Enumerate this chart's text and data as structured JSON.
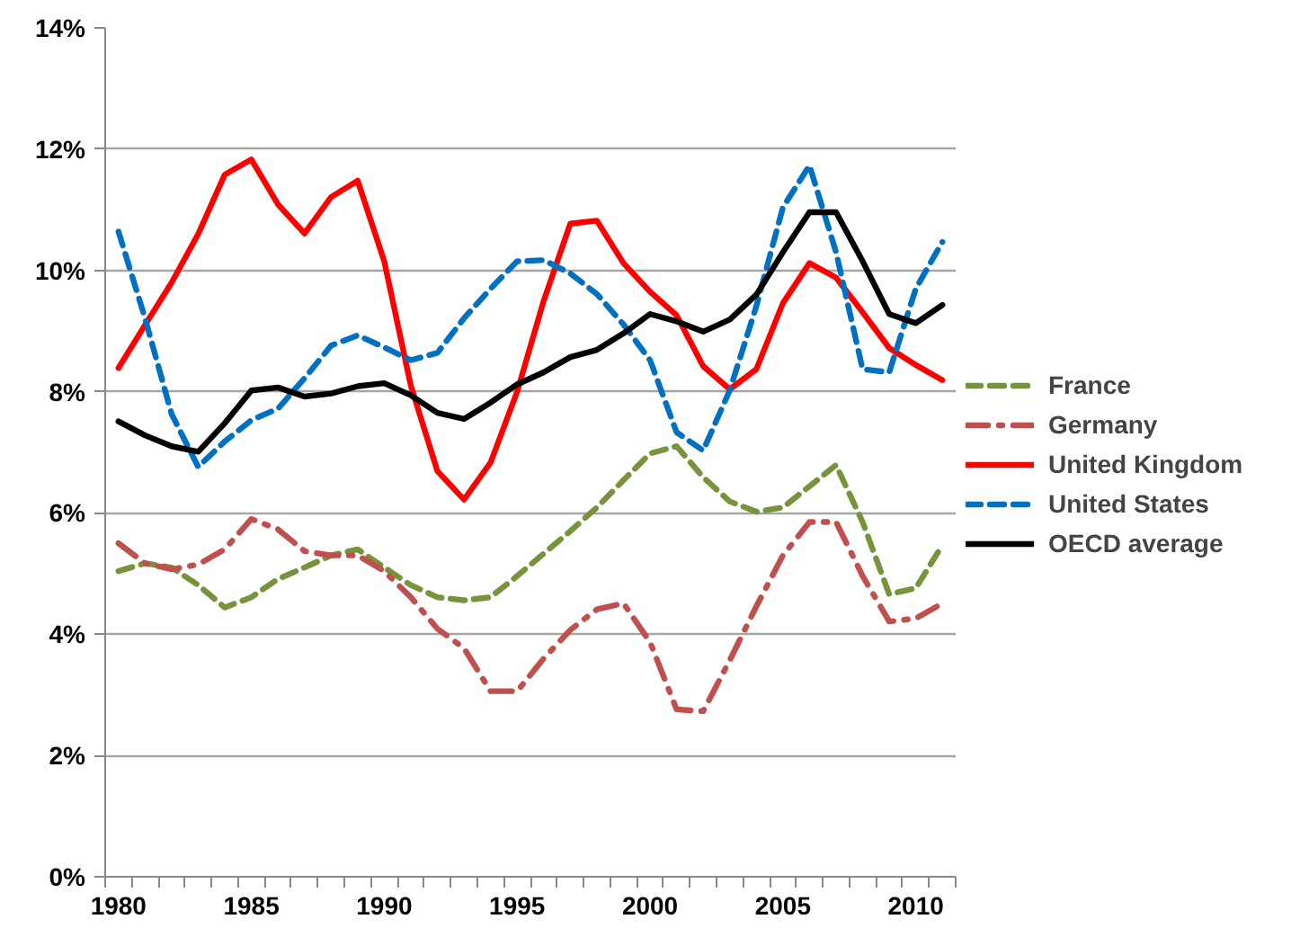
{
  "chart_data": {
    "type": "line",
    "x": [
      1980,
      1981,
      1982,
      1983,
      1984,
      1985,
      1986,
      1987,
      1988,
      1989,
      1990,
      1991,
      1992,
      1993,
      1994,
      1995,
      1996,
      1997,
      1998,
      1999,
      2000,
      2001,
      2002,
      2003,
      2004,
      2005,
      2006,
      2007,
      2008,
      2009,
      2010,
      2011
    ],
    "series": [
      {
        "name": "France",
        "color": "#77933c",
        "line_style": "dashed",
        "values": [
          5.04,
          5.17,
          5.1,
          4.81,
          4.44,
          4.61,
          4.91,
          5.1,
          5.3,
          5.4,
          5.1,
          4.81,
          4.61,
          4.56,
          4.61,
          4.96,
          5.33,
          5.7,
          6.09,
          6.54,
          6.98,
          7.1,
          6.59,
          6.19,
          6.02,
          6.09,
          6.44,
          6.79,
          5.85,
          4.66,
          4.76,
          5.47
        ]
      },
      {
        "name": "Germany",
        "color": "#c0504d",
        "line_style": "dashdot",
        "values": [
          5.5,
          5.17,
          5.07,
          5.15,
          5.4,
          5.9,
          5.73,
          5.37,
          5.3,
          5.3,
          5.04,
          4.61,
          4.09,
          3.77,
          3.06,
          3.06,
          3.6,
          4.07,
          4.41,
          4.51,
          3.87,
          2.76,
          2.73,
          3.57,
          4.46,
          5.3,
          5.85,
          5.85,
          4.96,
          4.21,
          4.26,
          4.51
        ]
      },
      {
        "name": "United Kingdom",
        "color": "#ff0000",
        "line_style": "solid",
        "values": [
          8.39,
          9.1,
          9.8,
          10.6,
          11.58,
          11.83,
          11.09,
          10.61,
          11.21,
          11.48,
          10.15,
          8.1,
          6.69,
          6.22,
          6.83,
          8.0,
          9.5,
          10.77,
          10.82,
          10.12,
          9.65,
          9.26,
          8.42,
          8.04,
          8.37,
          9.46,
          10.12,
          9.88,
          9.31,
          8.72,
          8.44,
          8.19
        ]
      },
      {
        "name": "United States",
        "color": "#0070c0",
        "line_style": "dashed",
        "values": [
          10.64,
          9.21,
          7.63,
          6.76,
          7.18,
          7.53,
          7.72,
          8.22,
          8.76,
          8.93,
          8.73,
          8.52,
          8.64,
          9.21,
          9.7,
          10.15,
          10.17,
          9.95,
          9.61,
          9.11,
          8.52,
          7.33,
          7.03,
          8.02,
          9.41,
          11.04,
          11.73,
          10.3,
          8.37,
          8.32,
          9.7,
          10.47
        ]
      },
      {
        "name": "OECD average",
        "color": "#000000",
        "line_style": "solid",
        "values": [
          7.51,
          7.28,
          7.1,
          7.01,
          7.48,
          8.02,
          8.07,
          7.92,
          7.97,
          8.09,
          8.14,
          7.94,
          7.65,
          7.55,
          7.82,
          8.12,
          8.32,
          8.57,
          8.69,
          8.96,
          9.28,
          9.16,
          8.99,
          9.19,
          9.6,
          10.3,
          10.96,
          10.96,
          10.15,
          9.28,
          9.13,
          9.43
        ]
      }
    ],
    "xlim": [
      1979.5,
      2011.5
    ],
    "xticks": [
      1980,
      1985,
      1990,
      1995,
      2000,
      2005,
      2010,
      {
        "value": 1979.5,
        "label": null
      },
      {
        "value": 1980.5,
        "label": null
      },
      {
        "value": 1981.5,
        "label": null
      },
      {
        "value": 1982.5,
        "label": null
      },
      {
        "value": 1983.5,
        "label": null
      },
      {
        "value": 1984.5,
        "label": null
      },
      {
        "value": 1985.5,
        "label": null
      },
      {
        "value": 1986.5,
        "label": null
      },
      {
        "value": 1987.5,
        "label": null
      },
      {
        "value": 1988.5,
        "label": null
      },
      {
        "value": 1989.5,
        "label": null
      },
      {
        "value": 1990.5,
        "label": null
      },
      {
        "value": 1991.5,
        "label": null
      },
      {
        "value": 1992.5,
        "label": null
      },
      {
        "value": 1993.5,
        "label": null
      },
      {
        "value": 1994.5,
        "label": null
      },
      {
        "value": 1995.5,
        "label": null
      },
      {
        "value": 1996.5,
        "label": null
      },
      {
        "value": 1997.5,
        "label": null
      },
      {
        "value": 1998.5,
        "label": null
      },
      {
        "value": 1999.5,
        "label": null
      },
      {
        "value": 2000.5,
        "label": null
      },
      {
        "value": 2001.5,
        "label": null
      },
      {
        "value": 2002.5,
        "label": null
      },
      {
        "value": 2003.5,
        "label": null
      },
      {
        "value": 2004.5,
        "label": null
      },
      {
        "value": 2005.5,
        "label": null
      },
      {
        "value": 2006.5,
        "label": null
      },
      {
        "value": 2007.5,
        "label": null
      },
      {
        "value": 2008.5,
        "label": null
      },
      {
        "value": 2009.5,
        "label": null
      },
      {
        "value": 2010.5,
        "label": null
      },
      {
        "value": 2011.5,
        "label": null
      }
    ],
    "ylim": [
      0,
      14
    ],
    "yticks": [
      {
        "value": 0,
        "label": "0%"
      },
      {
        "value": 2,
        "label": "2%"
      },
      {
        "value": 4,
        "label": "4%"
      },
      {
        "value": 6,
        "label": "6%"
      },
      {
        "value": 8,
        "label": "8%"
      },
      {
        "value": 10,
        "label": "10%"
      },
      {
        "value": 12,
        "label": "12%"
      },
      {
        "value": 14,
        "label": "14%"
      }
    ],
    "grid": "y",
    "legend": "right"
  }
}
